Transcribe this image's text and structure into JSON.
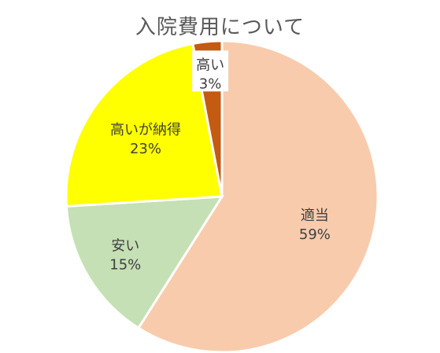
{
  "chart_data": {
    "type": "pie",
    "title": "入院費用について",
    "slices": [
      {
        "label": "適当",
        "value": 59,
        "percent_label": "59%",
        "color": "#F8CBAD"
      },
      {
        "label": "安い",
        "value": 15,
        "percent_label": "15%",
        "color": "#C5E0B4"
      },
      {
        "label": "高いが納得",
        "value": 23,
        "percent_label": "23%",
        "color": "#FFFF00"
      },
      {
        "label": "高い",
        "value": 3,
        "percent_label": "3%",
        "color": "#C55A11"
      }
    ],
    "start": "12 o'clock",
    "direction": "clockwise",
    "slice_border_color": "#FFFFFF"
  }
}
